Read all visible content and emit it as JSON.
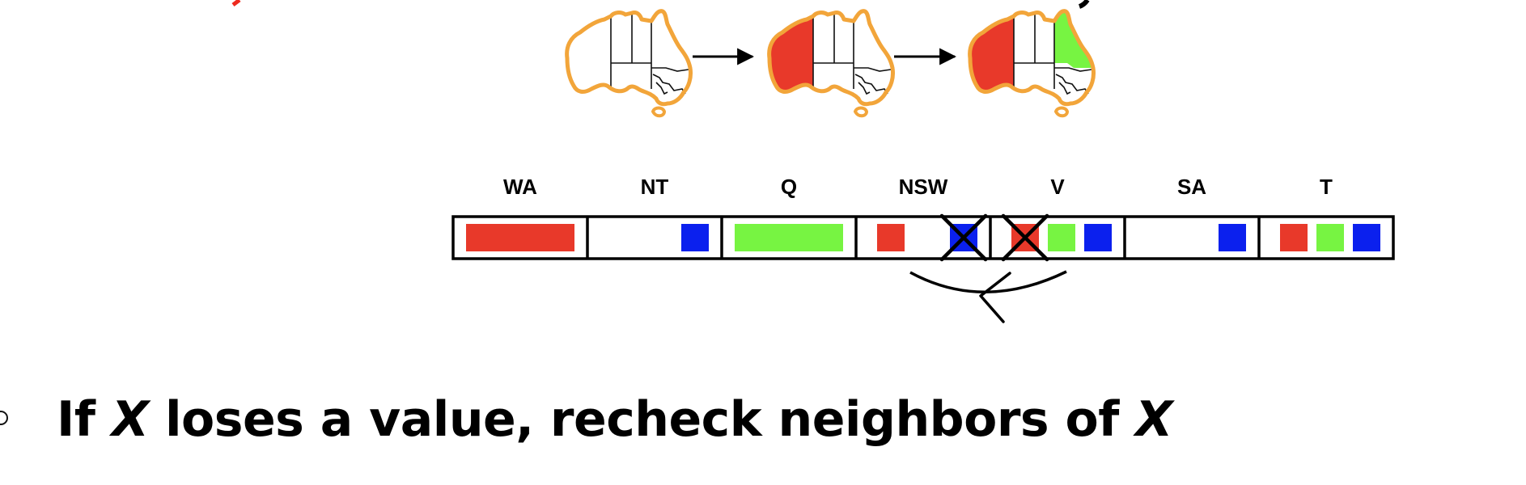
{
  "colors": {
    "red": "#e8392a",
    "green": "#77f442",
    "blue": "#0b20ee",
    "map_outline": "#f2a53a",
    "title_red": "#ee2a1f"
  },
  "maps": [
    {
      "filled": []
    },
    {
      "filled": [
        {
          "region": "WA",
          "color": "red"
        }
      ]
    },
    {
      "filled": [
        {
          "region": "WA",
          "color": "red"
        },
        {
          "region": "Q",
          "color": "green"
        }
      ]
    }
  ],
  "domain_table": {
    "variables": [
      {
        "label": "WA",
        "values": [
          "red"
        ]
      },
      {
        "label": "NT",
        "values": [
          "blue"
        ]
      },
      {
        "label": "Q",
        "values": [
          "green"
        ]
      },
      {
        "label": "NSW",
        "values": [
          "red",
          "blue"
        ],
        "crossed": [
          "blue"
        ]
      },
      {
        "label": "V",
        "values": [
          "red",
          "green",
          "blue"
        ],
        "crossed": [
          "red"
        ]
      },
      {
        "label": "SA",
        "values": [
          "blue"
        ]
      },
      {
        "label": "T",
        "values": [
          "red",
          "green",
          "blue"
        ]
      }
    ]
  },
  "bullet": {
    "prefix": "If ",
    "var1": "X",
    "middle": " loses a value, recheck neighbors of ",
    "var2": "X"
  }
}
